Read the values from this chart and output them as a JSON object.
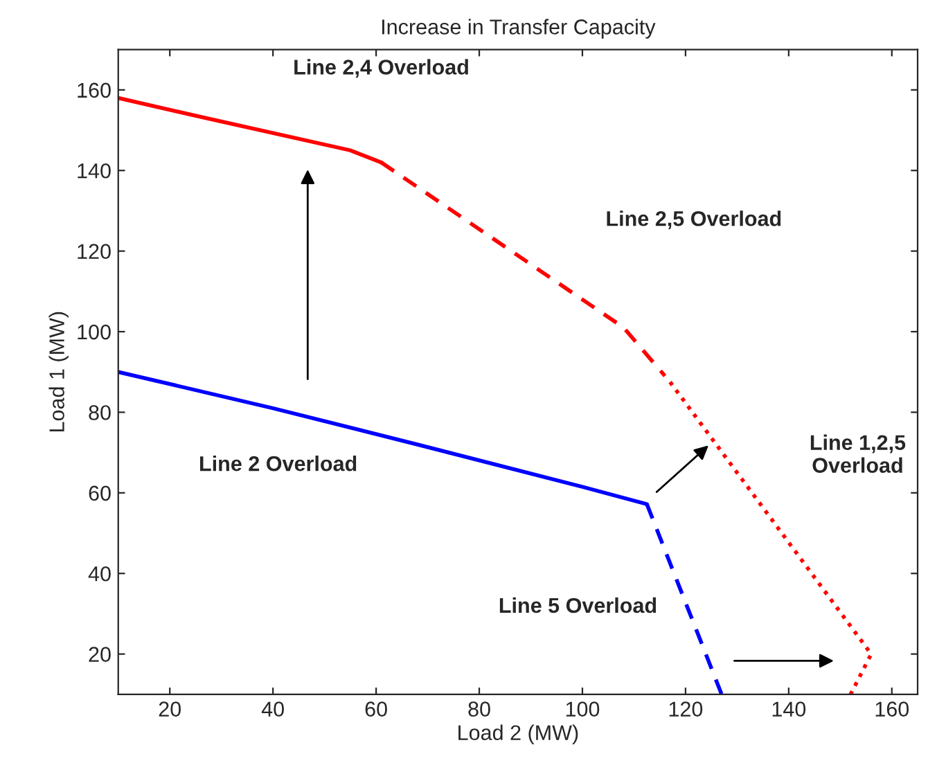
{
  "chart_data": {
    "type": "line",
    "title": "Increase in Transfer Capacity",
    "xlabel": "Load 2 (MW)",
    "ylabel": "Load 1 (MW)",
    "xlim": [
      10,
      165
    ],
    "ylim": [
      10,
      170
    ],
    "xticks": [
      20,
      40,
      60,
      80,
      100,
      120,
      140,
      160
    ],
    "yticks": [
      20,
      40,
      60,
      80,
      100,
      120,
      140,
      160
    ],
    "grid": false,
    "marker": "none",
    "series": [
      {
        "color": "#ff0000",
        "line_style": "solid",
        "x": [
          10,
          27,
          55,
          61
        ],
        "values": [
          158,
          153,
          145,
          142
        ]
      },
      {
        "color": "#ff0000",
        "line_style": "dashed",
        "x": [
          61,
          108,
          116
        ],
        "values": [
          142,
          101,
          89
        ]
      },
      {
        "color": "#ff0000",
        "line_style": "dotted",
        "x": [
          117,
          156,
          152
        ],
        "values": [
          87.5,
          20,
          10
        ]
      },
      {
        "color": "#0000ff",
        "line_style": "solid",
        "x": [
          10,
          40,
          68,
          100,
          112.5
        ],
        "values": [
          90,
          81,
          72,
          61.5,
          57.2
        ]
      },
      {
        "color": "#0000ff",
        "line_style": "dashed",
        "x": [
          112.5,
          127
        ],
        "values": [
          57.2,
          10
        ]
      }
    ],
    "annotations": [
      "Line 2,4 Overload",
      "Line 2,5 Overload",
      "Line 1,2,5\nOverload",
      "Line 2 Overload",
      "Line 5 Overload"
    ]
  }
}
